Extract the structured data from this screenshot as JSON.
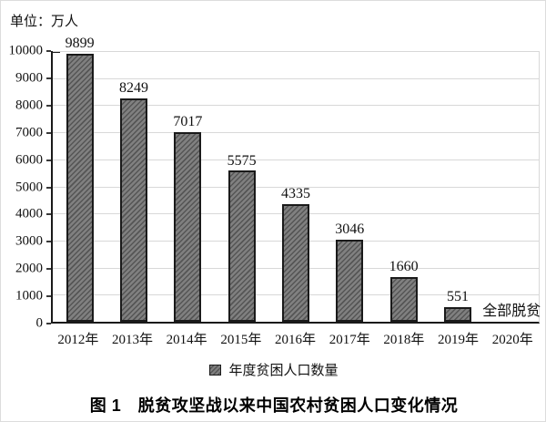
{
  "figure": {
    "unit_label": "单位：万人",
    "caption": "图 1　脱贫攻坚战以来中国农村贫困人口变化情况"
  },
  "chart_data": {
    "type": "bar",
    "title": "图 1 脱贫攻坚战以来中国农村贫困人口变化情况",
    "unit": "万人",
    "categories": [
      "2012年",
      "2013年",
      "2014年",
      "2015年",
      "2016年",
      "2017年",
      "2018年",
      "2019年",
      "2020年"
    ],
    "values": [
      9899,
      8249,
      7017,
      5575,
      4335,
      3046,
      1660,
      551,
      null
    ],
    "bar_labels": [
      "9899",
      "8249",
      "7017",
      "5575",
      "4335",
      "3046",
      "1660",
      "551",
      ""
    ],
    "annotation": {
      "category": "2020年",
      "text": "全部脱贫"
    },
    "legend": {
      "label": "年度贫困人口数量",
      "position": "bottom"
    },
    "xlabel": "",
    "ylabel": "单位：万人",
    "ylim": [
      0,
      10000
    ],
    "yticks": [
      0,
      1000,
      2000,
      3000,
      4000,
      5000,
      6000,
      7000,
      8000,
      9000,
      10000
    ],
    "grid": true,
    "colors": {
      "bar_fill": "#808080",
      "bar_hatch": "#555555",
      "bar_border": "#1a1a1a",
      "gridline": "#d8d8d8",
      "axis": "#1a1a1a",
      "text": "#111111"
    }
  }
}
